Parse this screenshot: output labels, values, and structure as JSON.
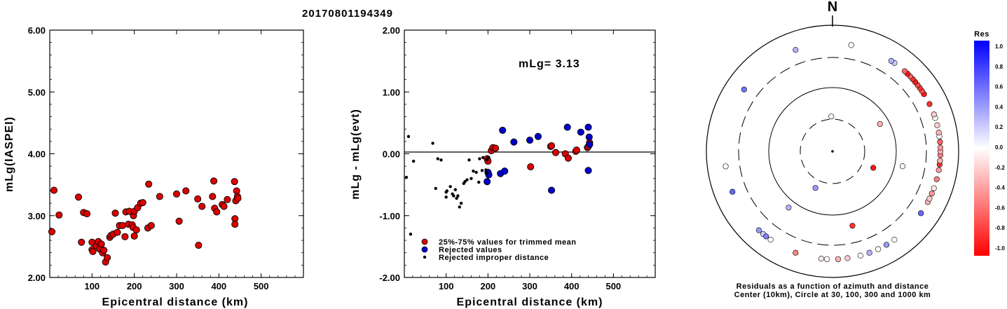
{
  "title": "20170801194349",
  "chart_data": [
    {
      "type": "scatter",
      "xlabel": "Epicentral distance (km)",
      "ylabel": "mLg(IASPEI)",
      "xlim": [
        0,
        600
      ],
      "ylim": [
        2.0,
        6.0
      ],
      "xticks": [
        "100",
        "200",
        "300",
        "400",
        "500"
      ],
      "yticks": [
        "2.00",
        "3.00",
        "4.00",
        "5.00",
        "6.00"
      ],
      "color": "#dd0000",
      "points": [
        [
          5,
          2.74
        ],
        [
          10,
          3.41
        ],
        [
          22,
          3.01
        ],
        [
          68,
          3.3
        ],
        [
          75,
          2.57
        ],
        [
          80,
          3.05
        ],
        [
          88,
          3.03
        ],
        [
          100,
          2.57
        ],
        [
          100,
          2.45
        ],
        [
          102,
          2.42
        ],
        [
          110,
          2.51
        ],
        [
          115,
          2.58
        ],
        [
          118,
          2.46
        ],
        [
          122,
          2.54
        ],
        [
          125,
          2.4
        ],
        [
          128,
          2.44
        ],
        [
          132,
          2.25
        ],
        [
          136,
          2.32
        ],
        [
          142,
          2.65
        ],
        [
          145,
          2.68
        ],
        [
          150,
          2.7
        ],
        [
          155,
          3.04
        ],
        [
          160,
          2.73
        ],
        [
          165,
          2.84
        ],
        [
          172,
          2.84
        ],
        [
          178,
          2.66
        ],
        [
          180,
          3.06
        ],
        [
          186,
          2.86
        ],
        [
          188,
          3.07
        ],
        [
          195,
          2.85
        ],
        [
          197,
          2.81
        ],
        [
          198,
          3.0
        ],
        [
          200,
          3.07
        ],
        [
          200,
          2.67
        ],
        [
          205,
          2.77
        ],
        [
          208,
          3.13
        ],
        [
          215,
          3.2
        ],
        [
          220,
          3.21
        ],
        [
          232,
          2.8
        ],
        [
          234,
          3.51
        ],
        [
          240,
          2.84
        ],
        [
          260,
          3.31
        ],
        [
          300,
          3.35
        ],
        [
          306,
          2.91
        ],
        [
          322,
          3.4
        ],
        [
          350,
          3.27
        ],
        [
          352,
          2.52
        ],
        [
          360,
          3.15
        ],
        [
          385,
          3.31
        ],
        [
          388,
          3.56
        ],
        [
          390,
          3.12
        ],
        [
          395,
          3.06
        ],
        [
          408,
          3.18
        ],
        [
          412,
          3.15
        ],
        [
          420,
          3.26
        ],
        [
          437,
          3.55
        ],
        [
          438,
          2.95
        ],
        [
          438,
          2.86
        ],
        [
          440,
          3.24
        ],
        [
          442,
          3.4
        ],
        [
          444,
          3.31
        ],
        [
          445,
          3.28
        ]
      ]
    },
    {
      "type": "scatter",
      "xlabel": "Epicentral distance (km)",
      "ylabel": "mLg - mLg(evt)",
      "xlim": [
        0,
        600
      ],
      "ylim": [
        -2.0,
        2.0
      ],
      "xticks": [
        "100",
        "200",
        "300",
        "400",
        "500"
      ],
      "yticks": [
        "-2.00",
        "-1.00",
        "0.00",
        "1.00",
        "2.00"
      ],
      "annotation": "mLg= 3.13",
      "zero_line": true,
      "series": [
        {
          "name": "25%-75% values for trimmed mean",
          "color": "#dd0000",
          "marker": "large",
          "points": [
            [
              198,
              -0.08
            ],
            [
              200,
              -0.12
            ],
            [
              208,
              0.05
            ],
            [
              212,
              0.1
            ],
            [
              218,
              0.09
            ],
            [
              302,
              -0.21
            ],
            [
              350,
              0.12
            ],
            [
              352,
              0.13
            ],
            [
              362,
              0.02
            ],
            [
              385,
              0.0
            ],
            [
              392,
              -0.07
            ],
            [
              410,
              0.04
            ],
            [
              412,
              0.06
            ],
            [
              438,
              0.1
            ],
            [
              440,
              0.12
            ],
            [
              443,
              0.18
            ]
          ]
        },
        {
          "name": "Rejected values",
          "color": "#0000cc",
          "marker": "large",
          "points": [
            [
              198,
              -0.45
            ],
            [
              200,
              -0.3
            ],
            [
              202,
              -0.34
            ],
            [
              230,
              -0.32
            ],
            [
              235,
              0.38
            ],
            [
              240,
              -0.28
            ],
            [
              262,
              0.19
            ],
            [
              300,
              0.22
            ],
            [
              320,
              0.28
            ],
            [
              352,
              -0.59
            ],
            [
              390,
              0.43
            ],
            [
              422,
              0.35
            ],
            [
              440,
              -0.27
            ],
            [
              440,
              0.43
            ],
            [
              442,
              0.27
            ],
            [
              443,
              0.15
            ]
          ]
        },
        {
          "name": "Rejected improper distance",
          "color": "#000000",
          "marker": "small",
          "points": [
            [
              5,
              -0.38
            ],
            [
              10,
              0.28
            ],
            [
              15,
              -1.3
            ],
            [
              22,
              -0.12
            ],
            [
              68,
              0.17
            ],
            [
              75,
              -0.56
            ],
            [
              80,
              -0.08
            ],
            [
              88,
              -0.1
            ],
            [
              100,
              -0.7
            ],
            [
              100,
              -0.62
            ],
            [
              102,
              -0.6
            ],
            [
              110,
              -0.53
            ],
            [
              115,
              -0.65
            ],
            [
              118,
              -0.68
            ],
            [
              122,
              -0.58
            ],
            [
              125,
              -0.72
            ],
            [
              128,
              -0.68
            ],
            [
              132,
              -0.86
            ],
            [
              136,
              -0.8
            ],
            [
              142,
              -0.48
            ],
            [
              145,
              -0.45
            ],
            [
              150,
              -0.42
            ],
            [
              155,
              -0.1
            ],
            [
              160,
              -0.4
            ],
            [
              165,
              -0.28
            ],
            [
              172,
              -0.3
            ],
            [
              178,
              -0.46
            ],
            [
              180,
              -0.08
            ],
            [
              186,
              -0.27
            ],
            [
              188,
              -0.06
            ],
            [
              195,
              -0.26
            ],
            [
              197,
              -0.32
            ],
            [
              198,
              -0.1
            ],
            [
              200,
              -0.06
            ]
          ]
        }
      ]
    },
    {
      "type": "polar-scatter",
      "north_label": "N",
      "caption_line1": "Residuals as a function of azimuth and distance",
      "caption_line2": "Center (10km), Circle at 30, 100, 300 and 1000 km",
      "rings_km": [
        30,
        100,
        300,
        1000
      ],
      "colorbar": {
        "title": "Res",
        "ticks": [
          "1.0",
          "0.8",
          "0.6",
          "0.4",
          "0.2",
          "0.0",
          "-0.2",
          "-0.4",
          "-0.6",
          "-0.8",
          "-1.0"
        ],
        "max_color": "#0000ff",
        "mid_color": "#ffffff",
        "min_color": "#ff0000"
      },
      "stations": [
        {
          "az": 0,
          "dist_km": 10,
          "res": 0
        },
        {
          "az": 358,
          "dist_km": 36,
          "res": 0.05
        },
        {
          "az": 112,
          "dist_km": 56,
          "res": -0.9
        },
        {
          "az": 205,
          "dist_km": 48,
          "res": 0.4
        },
        {
          "az": 60,
          "dist_km": 80,
          "res": -0.3
        },
        {
          "az": 102,
          "dist_km": 152,
          "res": -0.05
        },
        {
          "az": 218,
          "dist_km": 150,
          "res": 0.3
        },
        {
          "az": 165,
          "dist_km": 188,
          "res": -0.8
        },
        {
          "az": 10,
          "dist_km": 1000,
          "res": 0.0
        },
        {
          "az": 340,
          "dist_km": 1000,
          "res": 0.3
        },
        {
          "az": 35,
          "dist_km": 1000,
          "res": 0.2
        },
        {
          "az": 33,
          "dist_km": 1000,
          "res": 0.3
        },
        {
          "az": 305,
          "dist_km": 1000,
          "res": 0.55
        },
        {
          "az": 262,
          "dist_km": 1000,
          "res": 0.0
        },
        {
          "az": 248,
          "dist_km": 1000,
          "res": 0.6
        },
        {
          "az": 223,
          "dist_km": 1000,
          "res": 0.4
        },
        {
          "az": 220,
          "dist_km": 1000,
          "res": 0.2
        },
        {
          "az": 218,
          "dist_km": 1000,
          "res": 0.5
        },
        {
          "az": 215,
          "dist_km": 1000,
          "res": 0.0
        },
        {
          "az": 200,
          "dist_km": 1000,
          "res": -0.5
        },
        {
          "az": 186,
          "dist_km": 1000,
          "res": -0.1
        },
        {
          "az": 183,
          "dist_km": 1000,
          "res": 0.0
        },
        {
          "az": 177,
          "dist_km": 1000,
          "res": -0.3
        },
        {
          "az": 172,
          "dist_km": 1000,
          "res": -0.2
        },
        {
          "az": 165,
          "dist_km": 1000,
          "res": 0.0
        },
        {
          "az": 160,
          "dist_km": 1000,
          "res": 0.3
        },
        {
          "az": 155,
          "dist_km": 1000,
          "res": 0.0
        },
        {
          "az": 150,
          "dist_km": 1000,
          "res": 0.4
        },
        {
          "az": 145,
          "dist_km": 1000,
          "res": 0.0
        },
        {
          "az": 125,
          "dist_km": 1000,
          "res": 0.6
        },
        {
          "az": 118,
          "dist_km": 1000,
          "res": -0.3
        },
        {
          "az": 116,
          "dist_km": 1000,
          "res": -0.2
        },
        {
          "az": 113,
          "dist_km": 1000,
          "res": -0.4
        },
        {
          "az": 110,
          "dist_km": 1000,
          "res": -0.1
        },
        {
          "az": 105,
          "dist_km": 1000,
          "res": -0.5
        },
        {
          "az": 100,
          "dist_km": 1000,
          "res": -0.4
        },
        {
          "az": 97,
          "dist_km": 1000,
          "res": -0.8
        },
        {
          "az": 95,
          "dist_km": 1000,
          "res": -0.3
        },
        {
          "az": 92,
          "dist_km": 1000,
          "res": -0.5
        },
        {
          "az": 90,
          "dist_km": 1000,
          "res": -0.3
        },
        {
          "az": 88,
          "dist_km": 1000,
          "res": -0.4
        },
        {
          "az": 85,
          "dist_km": 1000,
          "res": -0.6
        },
        {
          "az": 82,
          "dist_km": 1000,
          "res": 0.0
        },
        {
          "az": 80,
          "dist_km": 1000,
          "res": -0.3
        },
        {
          "az": 76,
          "dist_km": 1000,
          "res": -0.2
        },
        {
          "az": 72,
          "dist_km": 1000,
          "res": 0.0
        },
        {
          "az": 70,
          "dist_km": 1000,
          "res": -0.2
        },
        {
          "az": 64,
          "dist_km": 1000,
          "res": -0.8
        },
        {
          "az": 58,
          "dist_km": 1000,
          "res": -0.9
        },
        {
          "az": 56,
          "dist_km": 1000,
          "res": -0.7
        },
        {
          "az": 54,
          "dist_km": 1000,
          "res": -0.8
        },
        {
          "az": 52,
          "dist_km": 1000,
          "res": -0.7
        },
        {
          "az": 50,
          "dist_km": 1000,
          "res": -0.9
        },
        {
          "az": 48,
          "dist_km": 1000,
          "res": -0.8
        },
        {
          "az": 46,
          "dist_km": 1000,
          "res": -0.6
        },
        {
          "az": 44,
          "dist_km": 1000,
          "res": -0.9
        },
        {
          "az": 42,
          "dist_km": 1000,
          "res": -0.6
        }
      ]
    }
  ]
}
